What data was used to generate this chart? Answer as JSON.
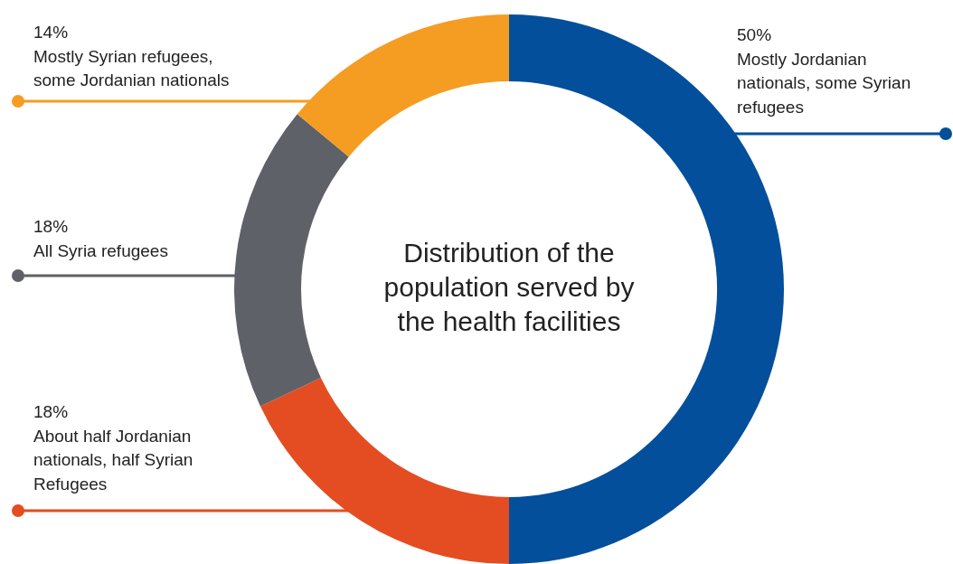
{
  "chart_data": {
    "type": "donut",
    "title": "Distribution of the population served by the health facilities",
    "categories": [
      "Mostly Jordanian nationals, some Syrian refugees",
      "About half Jordanian nationals, half Syrian Refugees",
      "All Syria refugees",
      "Mostly Syrian refugees, some Jordanian nationals"
    ],
    "values": [
      50,
      18,
      18,
      14
    ],
    "colors": [
      "#034f9b",
      "#e44c22",
      "#5f6168",
      "#f59c22"
    ],
    "value_labels": [
      "50%",
      "18%",
      "18%",
      "14%"
    ]
  }
}
